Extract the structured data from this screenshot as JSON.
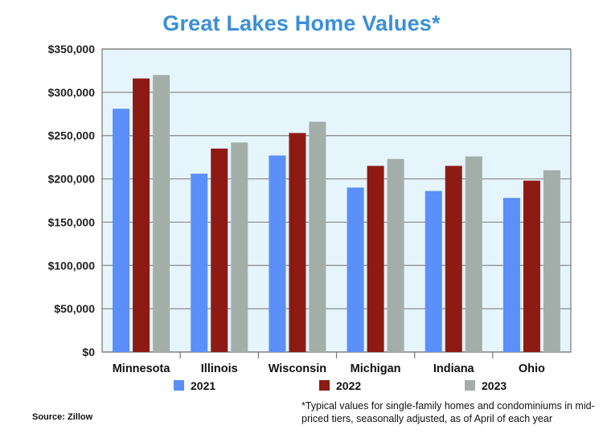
{
  "chart_data": {
    "type": "bar",
    "title": "Great Lakes Home Values*",
    "categories": [
      "Minnesota",
      "Illinois",
      "Wisconsin",
      "Michigan",
      "Indiana",
      "Ohio"
    ],
    "series": [
      {
        "name": "2021",
        "color": "#5b8ff9",
        "values": [
          281000,
          206000,
          227000,
          190000,
          186000,
          178000
        ]
      },
      {
        "name": "2022",
        "color": "#8e1a14",
        "values": [
          316000,
          235000,
          253000,
          215000,
          215000,
          198000
        ]
      },
      {
        "name": "2023",
        "color": "#a3aea9",
        "values": [
          320000,
          242000,
          266000,
          223000,
          226000,
          210000
        ]
      }
    ],
    "ylim": [
      0,
      350000
    ],
    "yticks": [
      0,
      50000,
      100000,
      150000,
      200000,
      250000,
      300000,
      350000
    ],
    "ytick_labels": [
      "$0",
      "$50,000",
      "$100,000",
      "$150,000",
      "$200,000",
      "$250,000",
      "$300,000",
      "$350,000"
    ],
    "grid": true,
    "legend_placement": "bottom",
    "plot_background": "#e6f5fb",
    "footnote": "*Typical values for single-family homes and condominiums in mid-priced tiers, seasonally adjusted, as of April of each year",
    "source": "Source: Zillow"
  }
}
